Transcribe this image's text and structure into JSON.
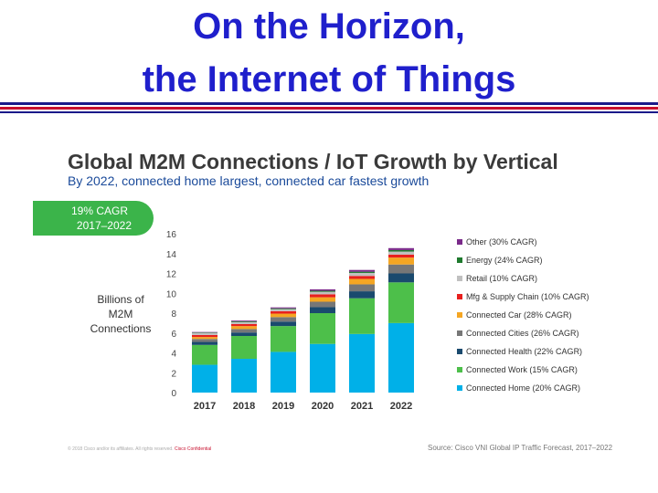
{
  "slide": {
    "title_line1": "On the Horizon,",
    "title_line2": "the Internet of Things",
    "accent_colors": {
      "title": "#1f1fcc",
      "rule_blue": "#1a1a8a",
      "rule_red": "#c8102e"
    }
  },
  "cagr_badge": {
    "rate": "19% CAGR",
    "years": "2017–2022",
    "color": "#3bb44a"
  },
  "footer": {
    "copyright": "© 2018 Cisco and/or its affiliates. All rights reserved.",
    "confidential": "Cisco Confidential",
    "source": "Source: Cisco VNI Global IP Traffic Forecast, 2017–2022"
  },
  "chart_data": {
    "type": "bar",
    "stacked": true,
    "title": "Global M2M Connections / IoT Growth by Vertical",
    "subtitle": "By 2022, connected home largest, connected car fastest growth",
    "ylabel": "Billions of M2M Connections",
    "xlabel": "",
    "ylim": [
      0,
      16
    ],
    "yticks": [
      0,
      2,
      4,
      6,
      8,
      10,
      12,
      14,
      16
    ],
    "grid": false,
    "legend_position": "right",
    "categories": [
      "2017",
      "2018",
      "2019",
      "2020",
      "2021",
      "2022"
    ],
    "series": [
      {
        "name": "Connected Home (20% CAGR)",
        "color": "#00b0e8",
        "values": [
          2.8,
          3.4,
          4.1,
          4.9,
          5.9,
          7.0
        ]
      },
      {
        "name": "Connected Work (15% CAGR)",
        "color": "#4dbf4a",
        "values": [
          2.0,
          2.3,
          2.6,
          3.1,
          3.6,
          4.1
        ]
      },
      {
        "name": "Connected Health (22% CAGR)",
        "color": "#1a4a6e",
        "values": [
          0.3,
          0.35,
          0.45,
          0.6,
          0.7,
          0.9
        ]
      },
      {
        "name": "Connected Cities (26% CAGR)",
        "color": "#777777",
        "values": [
          0.3,
          0.35,
          0.45,
          0.55,
          0.7,
          0.9
        ]
      },
      {
        "name": "Connected Car (28% CAGR)",
        "color": "#f5a623",
        "values": [
          0.2,
          0.3,
          0.35,
          0.45,
          0.55,
          0.7
        ]
      },
      {
        "name": "Mfg & Supply Chain (10% CAGR)",
        "color": "#e8201e",
        "values": [
          0.2,
          0.2,
          0.25,
          0.3,
          0.3,
          0.3
        ]
      },
      {
        "name": "Retail (10% CAGR)",
        "color": "#c0c0c0",
        "values": [
          0.2,
          0.2,
          0.2,
          0.25,
          0.3,
          0.3
        ]
      },
      {
        "name": "Energy (24% CAGR)",
        "color": "#1f7a2e",
        "values": [
          0.05,
          0.07,
          0.08,
          0.1,
          0.12,
          0.15
        ]
      },
      {
        "name": "Other (30% CAGR)",
        "color": "#7a2a8a",
        "values": [
          0.05,
          0.08,
          0.1,
          0.15,
          0.18,
          0.2
        ]
      }
    ]
  }
}
